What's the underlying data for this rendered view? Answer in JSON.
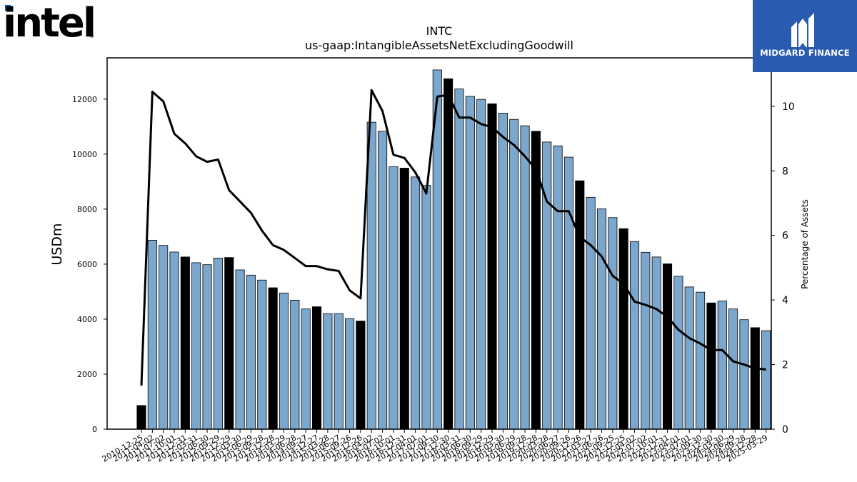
{
  "logos": {
    "left_logo_text": "intel",
    "right_logo_text": "MIDGARD FINANCE"
  },
  "colors": {
    "bar_light": "#7ba7cc",
    "bar_dark": "#000000",
    "line": "#000000",
    "brand_box": "#2a5bb0"
  },
  "chart_data": {
    "type": "bar",
    "title": "INTC",
    "subtitle": "us-gaap:IntangibleAssetsNetExcludingGoodwill",
    "ylabel": "USDm",
    "y2label": "Percentage of Assets",
    "ylim": [
      0,
      13500
    ],
    "y2lim": [
      0,
      11.5
    ],
    "yticks": [
      0,
      2000,
      4000,
      6000,
      8000,
      10000,
      12000
    ],
    "y2ticks": [
      0,
      2,
      4,
      6,
      8,
      10
    ],
    "categories": [
      "2010-12-25",
      "2011-04-02",
      "2011-07-02",
      "2011-10-01",
      "2011-12-31",
      "2012-03-31",
      "2012-06-30",
      "2012-09-29",
      "2012-12-29",
      "2013-03-30",
      "2013-06-29",
      "2013-09-28",
      "2013-12-28",
      "2014-03-29",
      "2014-06-28",
      "2014-09-27",
      "2014-12-27",
      "2015-03-28",
      "2015-06-27",
      "2015-09-26",
      "2015-12-26",
      "2016-04-02",
      "2016-07-02",
      "2016-10-01",
      "2016-12-31",
      "2017-04-01",
      "2017-07-01",
      "2017-09-30",
      "2017-12-30",
      "2018-03-31",
      "2018-06-30",
      "2018-09-29",
      "2018-12-29",
      "2019-03-30",
      "2019-06-29",
      "2019-09-28",
      "2019-12-28",
      "2020-03-28",
      "2020-06-27",
      "2020-09-26",
      "2020-12-26",
      "2021-03-27",
      "2021-06-26",
      "2021-09-25",
      "2021-12-25",
      "2022-04-02",
      "2022-07-02",
      "2022-10-01",
      "2022-12-31",
      "2023-04-01",
      "2023-07-01",
      "2023-09-30",
      "2023-12-30",
      "2024-03-30",
      "2024-06-29",
      "2024-09-28",
      "2024-12-28",
      "2025-03-29"
    ],
    "series": [
      {
        "name": "",
        "values": [
          860,
          6870,
          6680,
          6440,
          6260,
          6050,
          5980,
          6220,
          6240,
          5790,
          5600,
          5420,
          5140,
          4950,
          4690,
          4370,
          4450,
          4200,
          4200,
          4020,
          3930,
          11160,
          10830,
          9540,
          9490,
          9170,
          8860,
          13060,
          12740,
          12370,
          12100,
          11990,
          11830,
          11490,
          11260,
          11030,
          10830,
          10440,
          10300,
          9890,
          9030,
          8430,
          8010,
          7690,
          7290,
          6820,
          6430,
          6260,
          6010,
          5560,
          5170,
          4980,
          4590,
          4660,
          4370,
          3980,
          3690,
          3580
        ],
        "dark_indices": [
          0,
          4,
          8,
          12,
          16,
          20,
          24,
          28,
          32,
          36,
          40,
          44,
          48,
          52,
          56
        ]
      },
      {
        "name": "",
        "type": "line",
        "axis": "right",
        "values": [
          1.35,
          10.45,
          10.15,
          9.15,
          8.85,
          8.45,
          8.28,
          8.35,
          7.4,
          7.05,
          6.7,
          6.15,
          5.7,
          5.55,
          5.3,
          5.05,
          5.05,
          4.95,
          4.9,
          4.3,
          4.05,
          10.5,
          9.85,
          8.5,
          8.4,
          7.95,
          7.3,
          10.3,
          10.35,
          9.65,
          9.65,
          9.45,
          9.35,
          9.05,
          8.8,
          8.45,
          8.05,
          7.05,
          6.75,
          6.75,
          5.95,
          5.7,
          5.35,
          4.75,
          4.5,
          3.95,
          3.85,
          3.72,
          3.48,
          3.08,
          2.82,
          2.65,
          2.45,
          2.45,
          2.1,
          2.0,
          1.88,
          1.85
        ]
      }
    ],
    "grid": false,
    "legend": "none"
  }
}
